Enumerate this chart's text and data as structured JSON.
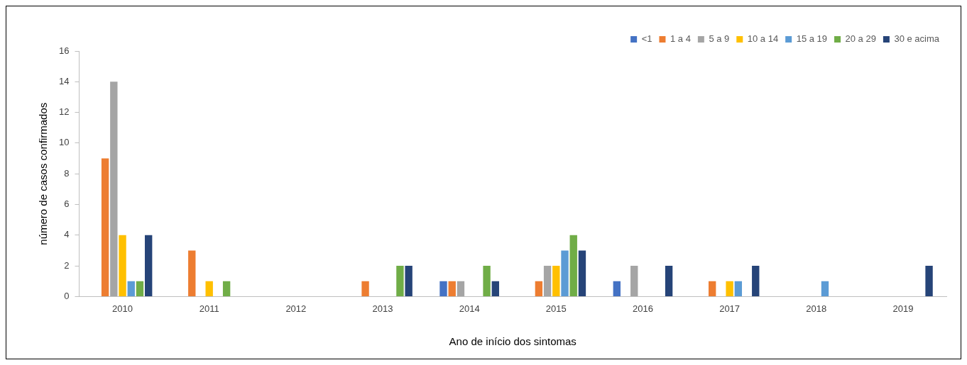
{
  "chart_data": {
    "type": "bar",
    "xlabel": "Ano de início dos sintomas",
    "ylabel": "número de casos confirmados",
    "categories": [
      "2010",
      "2011",
      "2012",
      "2013",
      "2014",
      "2015",
      "2016",
      "2017",
      "2018",
      "2019"
    ],
    "series": [
      {
        "name": "<1",
        "color": "#4472c4",
        "values": [
          0,
          0,
          0,
          0,
          1,
          0,
          1,
          0,
          0,
          0
        ]
      },
      {
        "name": "1 a 4",
        "color": "#ed7d31",
        "values": [
          9,
          3,
          0,
          1,
          1,
          1,
          0,
          1,
          0,
          0
        ]
      },
      {
        "name": "5 a 9",
        "color": "#a5a5a5",
        "values": [
          14,
          0,
          0,
          0,
          1,
          2,
          2,
          0,
          0,
          0
        ]
      },
      {
        "name": "10 a 14",
        "color": "#ffc000",
        "values": [
          4,
          1,
          0,
          0,
          0,
          2,
          0,
          1,
          0,
          0
        ]
      },
      {
        "name": "15 a 19",
        "color": "#5b9bd5",
        "values": [
          1,
          0,
          0,
          0,
          0,
          3,
          0,
          1,
          1,
          0
        ]
      },
      {
        "name": "20 a 29",
        "color": "#70ad47",
        "values": [
          1,
          1,
          0,
          2,
          2,
          4,
          0,
          0,
          0,
          0
        ]
      },
      {
        "name": "30 e acima",
        "color": "#264478",
        "values": [
          4,
          0,
          0,
          2,
          1,
          3,
          2,
          2,
          0,
          2
        ]
      }
    ],
    "ylim": [
      0,
      16
    ],
    "yticks": [
      0,
      2,
      4,
      6,
      8,
      10,
      12,
      14,
      16
    ],
    "grid": false,
    "legend": "top right"
  }
}
